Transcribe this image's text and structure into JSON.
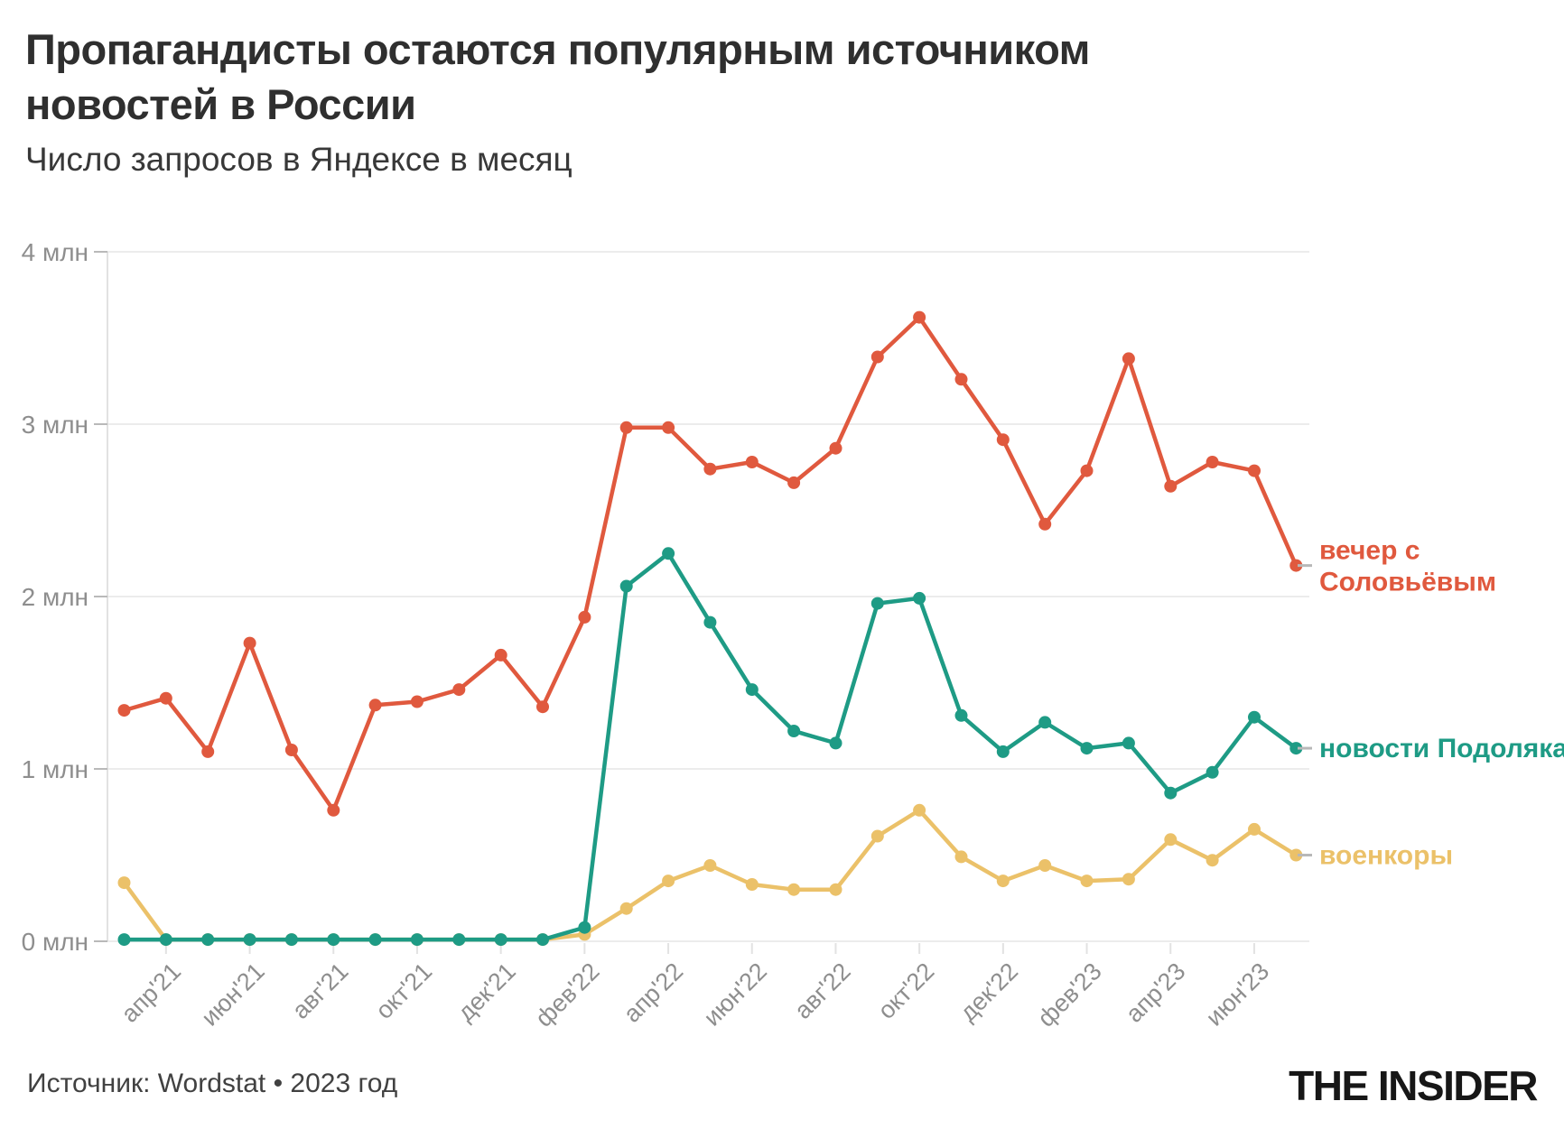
{
  "header": {
    "title_line1": "Пропагандисты остаются популярным источником",
    "title_line2": "новостей в России",
    "subtitle": "Число запросов в Яндексе в месяц"
  },
  "footer": {
    "source": "Источник: Wordstat • 2023 год",
    "logo": "THE INSIDER"
  },
  "colors": {
    "solovyov": "#E0593E",
    "podolyaka": "#1E9B85",
    "voenkory": "#EBC169",
    "gridline": "#ececec",
    "axis_line": "#e2e2e2",
    "y_tick_dash": "#b9b9b9",
    "x_tick_dash": "#e2e2e2",
    "tick_text": "#8e8e8e",
    "legend_dash": "#b8b8b8"
  },
  "chart_data": {
    "type": "line",
    "title": "Пропагандисты остаются популярным источником новостей в России",
    "subtitle": "Число запросов в Яндексе в месяц",
    "unit": "млн",
    "ylim": [
      0,
      4
    ],
    "grid": "horizontal",
    "legend_position": "right-of-line-ends",
    "y_ticks": [
      "0 млн",
      "1 млн",
      "2 млн",
      "3 млн",
      "4 млн"
    ],
    "x": [
      "мар'21",
      "апр'21",
      "май'21",
      "июн'21",
      "июл'21",
      "авг'21",
      "сен'21",
      "окт'21",
      "ноя'21",
      "дек'21",
      "янв'22",
      "фев'22",
      "мар'22",
      "апр'22",
      "май'22",
      "июн'22",
      "июл'22",
      "авг'22",
      "сен'22",
      "окт'22",
      "ноя'22",
      "дек'22",
      "янв'23",
      "фев'23",
      "мар'23",
      "апр'23",
      "май'23",
      "июн'23",
      "июл'23"
    ],
    "x_tick_labels_shown": [
      "апр'21",
      "июн'21",
      "авг'21",
      "окт'21",
      "дек'21",
      "фев'22",
      "апр'22",
      "июн'22",
      "авг'22",
      "окт'22",
      "дек'22",
      "фев'23",
      "апр'23",
      "июн'23"
    ],
    "series": [
      {
        "name": "вечер с Соловьёвым",
        "legend_lines": [
          "вечер с",
          "Соловьёвым"
        ],
        "color": "#E0593E",
        "values": [
          1.34,
          1.41,
          1.1,
          1.73,
          1.11,
          0.76,
          1.37,
          1.39,
          1.46,
          1.66,
          1.36,
          1.88,
          2.98,
          2.98,
          2.74,
          2.78,
          2.66,
          2.86,
          3.39,
          3.62,
          3.26,
          2.91,
          2.42,
          2.73,
          3.38,
          2.64,
          2.78,
          2.73,
          2.18
        ]
      },
      {
        "name": "новости Подоляка",
        "legend_lines": [
          "новости Подоляка"
        ],
        "color": "#1E9B85",
        "values": [
          0.01,
          0.01,
          0.01,
          0.01,
          0.01,
          0.01,
          0.01,
          0.01,
          0.01,
          0.01,
          0.01,
          0.08,
          2.06,
          2.25,
          1.85,
          1.46,
          1.22,
          1.15,
          1.96,
          1.99,
          1.31,
          1.1,
          1.27,
          1.12,
          1.15,
          0.86,
          0.98,
          1.3,
          1.12
        ]
      },
      {
        "name": "военкоры",
        "legend_lines": [
          "военкоры"
        ],
        "color": "#EBC169",
        "values": [
          0.34,
          0.01,
          0.01,
          0.01,
          0.01,
          0.01,
          0.01,
          0.01,
          0.01,
          0.01,
          0.01,
          0.04,
          0.19,
          0.35,
          0.44,
          0.33,
          0.3,
          0.3,
          0.61,
          0.76,
          0.49,
          0.35,
          0.44,
          0.35,
          0.36,
          0.59,
          0.47,
          0.65,
          0.5
        ]
      }
    ]
  }
}
